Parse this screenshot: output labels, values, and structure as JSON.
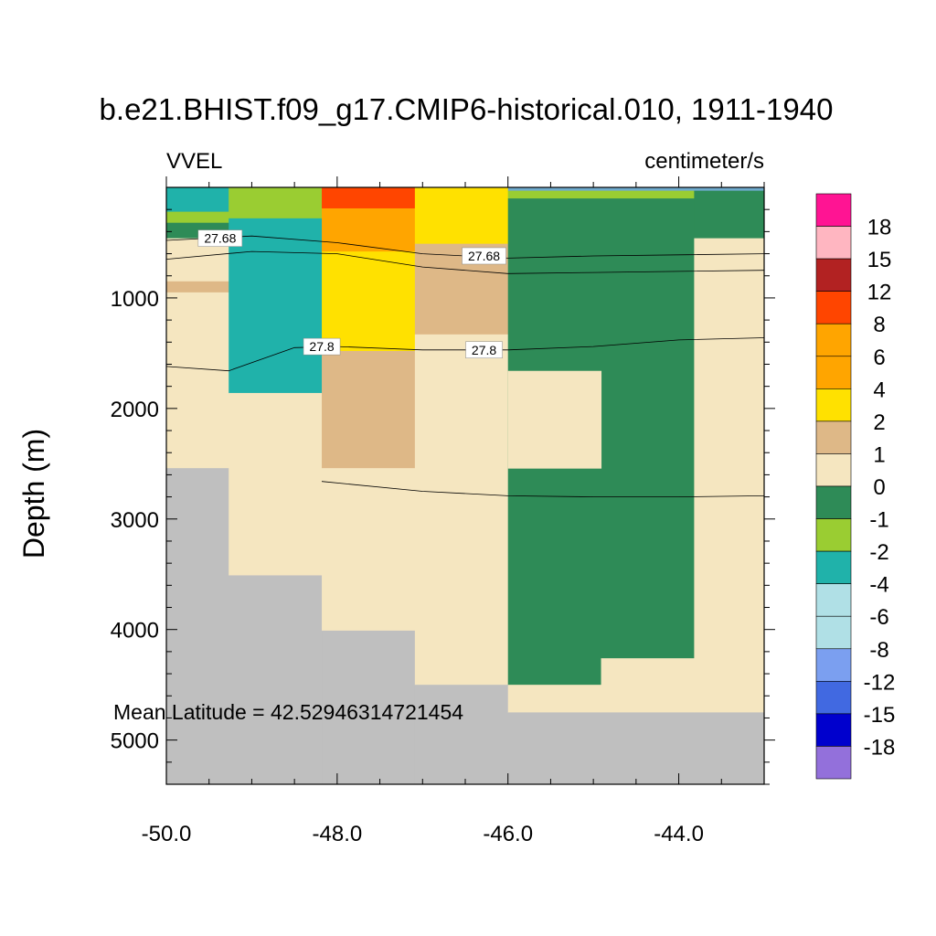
{
  "chart_data": {
    "type": "heatmap",
    "title": "b.e21.BHIST.f09_g17.CMIP6-historical.010, 1911-1940",
    "left_label": "VVEL",
    "right_label": "centimeter/s",
    "xlabel": "",
    "ylabel": "Depth (m)",
    "xlim": [
      -50.0,
      -43.0
    ],
    "ylim": [
      5400,
      0
    ],
    "x_ticks": [
      -50.0,
      -48.0,
      -46.0,
      -44.0
    ],
    "x_tick_labels": [
      "-50.0",
      "-48.0",
      "-46.0",
      "-44.0"
    ],
    "y_ticks": [
      1000,
      2000,
      3000,
      4000,
      5000
    ],
    "y_tick_labels": [
      "1000",
      "2000",
      "3000",
      "4000",
      "5000"
    ],
    "annotation": "Mean Latitude = 42.52946314721454",
    "colorbar": {
      "colors": [
        "#ff1493",
        "#ffb6c1",
        "#b22222",
        "#ff4500",
        "#ffa500",
        "#ffa500",
        "#ffe100",
        "#deb887",
        "#f5e6c0",
        "#2e8b57",
        "#9acd32",
        "#20b2aa",
        "#b0e0e6",
        "#b0e0e6",
        "#7b9ff0",
        "#4169e1",
        "#0000cd",
        "#9370db"
      ],
      "labels": [
        "18",
        "15",
        "12",
        "8",
        "6",
        "4",
        "2",
        "1",
        "0",
        "-1",
        "-2",
        "-4",
        "-6",
        "-8",
        "-12",
        "-15",
        "-18"
      ]
    },
    "cells": [
      {
        "x": [
          -50.0,
          -49.27
        ],
        "y": [
          0,
          220
        ],
        "c": "#20b2aa"
      },
      {
        "x": [
          -50.0,
          -49.27
        ],
        "y": [
          220,
          320
        ],
        "c": "#9acd32"
      },
      {
        "x": [
          -50.0,
          -49.27
        ],
        "y": [
          320,
          460
        ],
        "c": "#2e8b57"
      },
      {
        "x": [
          -50.0,
          -49.27
        ],
        "y": [
          460,
          850
        ],
        "c": "#f5e6c0"
      },
      {
        "x": [
          -50.0,
          -49.27
        ],
        "y": [
          850,
          950
        ],
        "c": "#deb887"
      },
      {
        "x": [
          -50.0,
          -49.27
        ],
        "y": [
          950,
          2540
        ],
        "c": "#f5e6c0"
      },
      {
        "x": [
          -50.0,
          -49.27
        ],
        "y": [
          2540,
          5400
        ],
        "c": "#bfbfbf"
      },
      {
        "x": [
          -49.27,
          -48.18
        ],
        "y": [
          0,
          280
        ],
        "c": "#9acd32"
      },
      {
        "x": [
          -49.27,
          -48.18
        ],
        "y": [
          280,
          1860
        ],
        "c": "#20b2aa"
      },
      {
        "x": [
          -49.27,
          -48.18
        ],
        "y": [
          1860,
          3510
        ],
        "c": "#f5e6c0"
      },
      {
        "x": [
          -49.27,
          -48.18
        ],
        "y": [
          3510,
          5400
        ],
        "c": "#bfbfbf"
      },
      {
        "x": [
          -48.18,
          -47.09
        ],
        "y": [
          0,
          190
        ],
        "c": "#ff4500"
      },
      {
        "x": [
          -48.18,
          -47.09
        ],
        "y": [
          190,
          580
        ],
        "c": "#ffa500"
      },
      {
        "x": [
          -48.18,
          -47.09
        ],
        "y": [
          580,
          1480
        ],
        "c": "#ffe100"
      },
      {
        "x": [
          -48.18,
          -47.09
        ],
        "y": [
          1480,
          2540
        ],
        "c": "#deb887"
      },
      {
        "x": [
          -48.18,
          -47.09
        ],
        "y": [
          2540,
          4010
        ],
        "c": "#f5e6c0"
      },
      {
        "x": [
          -48.18,
          -47.09
        ],
        "y": [
          4010,
          5400
        ],
        "c": "#bfbfbf"
      },
      {
        "x": [
          -47.09,
          -46.0
        ],
        "y": [
          0,
          510
        ],
        "c": "#ffe100"
      },
      {
        "x": [
          -47.09,
          -46.0
        ],
        "y": [
          510,
          1330
        ],
        "c": "#deb887"
      },
      {
        "x": [
          -47.09,
          -46.0
        ],
        "y": [
          1330,
          4500
        ],
        "c": "#f5e6c0"
      },
      {
        "x": [
          -47.09,
          -46.0
        ],
        "y": [
          4500,
          5400
        ],
        "c": "#bfbfbf"
      },
      {
        "x": [
          -46.0,
          -44.91
        ],
        "y": [
          0,
          30
        ],
        "c": "#6faacd"
      },
      {
        "x": [
          -46.0,
          -44.91
        ],
        "y": [
          30,
          100
        ],
        "c": "#9acd32"
      },
      {
        "x": [
          -46.0,
          -44.91
        ],
        "y": [
          100,
          4500
        ],
        "c": "#2e8b57"
      },
      {
        "x": [
          -46.0,
          -44.91
        ],
        "y": [
          4500,
          4750
        ],
        "c": "#f5e6c0"
      },
      {
        "x": [
          -46.0,
          -44.91
        ],
        "y": [
          4750,
          5400
        ],
        "c": "#bfbfbf"
      },
      {
        "x": [
          -44.91,
          -43.82
        ],
        "y": [
          0,
          30
        ],
        "c": "#6faacd"
      },
      {
        "x": [
          -44.91,
          -43.82
        ],
        "y": [
          30,
          100
        ],
        "c": "#9acd32"
      },
      {
        "x": [
          -44.91,
          -43.82
        ],
        "y": [
          100,
          4260
        ],
        "c": "#2e8b57"
      },
      {
        "x": [
          -44.91,
          -43.82
        ],
        "y": [
          4260,
          4750
        ],
        "c": "#f5e6c0"
      },
      {
        "x": [
          -44.91,
          -43.82
        ],
        "y": [
          4750,
          5400
        ],
        "c": "#bfbfbf"
      },
      {
        "x": [
          -43.82,
          -43.0
        ],
        "y": [
          0,
          30
        ],
        "c": "#6faacd"
      },
      {
        "x": [
          -43.82,
          -43.0
        ],
        "y": [
          30,
          460
        ],
        "c": "#2e8b57"
      },
      {
        "x": [
          -43.82,
          -43.0
        ],
        "y": [
          460,
          4750
        ],
        "c": "#f5e6c0"
      },
      {
        "x": [
          -43.82,
          -43.0
        ],
        "y": [
          4750,
          5400
        ],
        "c": "#bfbfbf"
      },
      {
        "x": [
          -46.0,
          -44.91
        ],
        "y": [
          1660,
          2540
        ],
        "c": "#f5e6c0"
      }
    ],
    "contours": [
      {
        "level": "27.68",
        "points": [
          [
            -50.0,
            480
          ],
          [
            -49.0,
            440
          ],
          [
            -48.0,
            500
          ],
          [
            -47.0,
            600
          ],
          [
            -46.0,
            640
          ],
          [
            -45.0,
            620
          ],
          [
            -44.0,
            610
          ],
          [
            -43.0,
            600
          ]
        ],
        "label_at": [
          [
            -49.37,
            460
          ],
          [
            -46.28,
            620
          ]
        ]
      },
      {
        "level": "",
        "points": [
          [
            -50.0,
            650
          ],
          [
            -49.0,
            580
          ],
          [
            -48.0,
            600
          ],
          [
            -47.0,
            720
          ],
          [
            -46.0,
            780
          ],
          [
            -45.0,
            770
          ],
          [
            -44.0,
            760
          ],
          [
            -43.0,
            750
          ]
        ]
      },
      {
        "level": "27.8",
        "points": [
          [
            -50.0,
            1620
          ],
          [
            -49.27,
            1660
          ],
          [
            -48.5,
            1450
          ],
          [
            -48.0,
            1440
          ],
          [
            -47.0,
            1470
          ],
          [
            -46.0,
            1470
          ],
          [
            -45.0,
            1440
          ],
          [
            -44.0,
            1380
          ],
          [
            -43.0,
            1360
          ]
        ],
        "label_at": [
          [
            -48.18,
            1440
          ],
          [
            -46.28,
            1470
          ]
        ]
      },
      {
        "level": "",
        "points": [
          [
            -48.18,
            2660
          ],
          [
            -47.0,
            2750
          ],
          [
            -46.0,
            2790
          ],
          [
            -45.0,
            2800
          ],
          [
            -44.0,
            2800
          ],
          [
            -43.0,
            2790
          ]
        ]
      }
    ]
  }
}
